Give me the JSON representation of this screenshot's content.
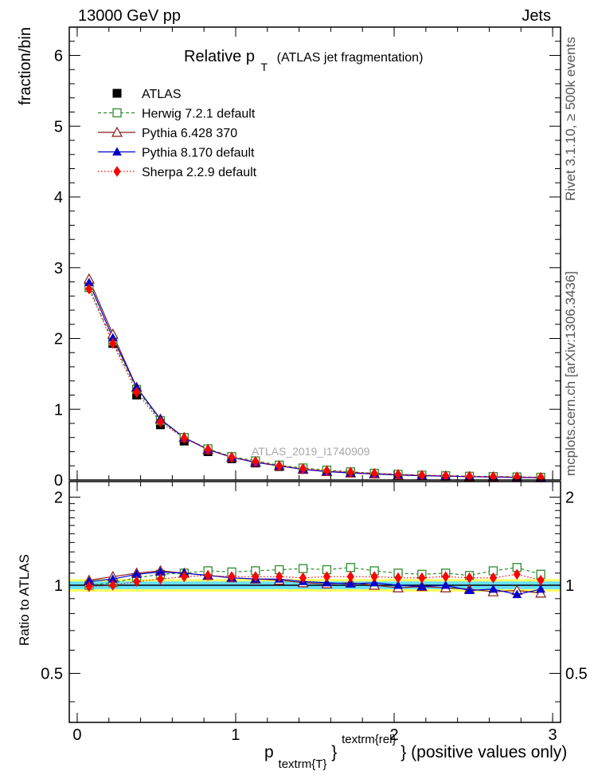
{
  "header": {
    "left": "13000 GeV pp",
    "right": "Jets"
  },
  "side_labels": {
    "rivet": "Rivet 3.1.10, ≥ 500k events",
    "mcplots": "mcplots.cern.ch [arXiv:1306.3436]"
  },
  "chart_data": {
    "type": "line",
    "title": "Relative p",
    "title_subscript": "T",
    "title_suffix": "(ATLAS jet fragmentation)",
    "analysis_label": "ATLAS_2019_I1740909",
    "xlabel": "p",
    "xlabel_sub": "textrm{T}",
    "xlabel_sup": "textrm{rel}",
    "xlabel_suffix": "} (positive values only)",
    "xlabel_brace": "}",
    "ylabel_main": "fraction/bin",
    "ylabel_ratio": "Ratio to ATLAS",
    "xlim": [
      -0.05,
      3.05
    ],
    "ylim_main": [
      0,
      6.4
    ],
    "ylim_ratio": [
      0.34,
      2.26
    ],
    "x_ticks": [
      0,
      1,
      2,
      3
    ],
    "x_tick_labels": [
      "0",
      "1",
      "2",
      "3"
    ],
    "y_ticks_main": [
      0,
      1,
      2,
      3,
      4,
      5,
      6
    ],
    "y_tick_labels_main": [
      "0",
      "1",
      "2",
      "3",
      "4",
      "5",
      "6"
    ],
    "y_ticks_ratio": [
      0.5,
      1,
      2
    ],
    "y_tick_labels_ratio": [
      "0.5",
      "1",
      "2"
    ],
    "x": [
      0.075,
      0.225,
      0.375,
      0.525,
      0.675,
      0.825,
      0.975,
      1.125,
      1.275,
      1.425,
      1.575,
      1.725,
      1.875,
      2.025,
      2.175,
      2.325,
      2.475,
      2.625,
      2.775,
      2.925
    ],
    "data": {
      "name": "ATLAS",
      "values": [
        2.72,
        1.93,
        1.2,
        0.78,
        0.55,
        0.4,
        0.3,
        0.24,
        0.19,
        0.15,
        0.12,
        0.1,
        0.085,
        0.072,
        0.062,
        0.055,
        0.049,
        0.044,
        0.039,
        0.035
      ]
    },
    "series": [
      {
        "name": "Herwig 7.2.1 default",
        "color": "#2e8b2e",
        "marker": "open-square",
        "dash": "dashed",
        "values": [
          2.72,
          1.96,
          1.28,
          0.84,
          0.6,
          0.44,
          0.33,
          0.27,
          0.21,
          0.17,
          0.14,
          0.115,
          0.095,
          0.08,
          0.068,
          0.06,
          0.053,
          0.048,
          0.043,
          0.038
        ],
        "ratio": [
          1.0,
          1.02,
          1.06,
          1.09,
          1.1,
          1.12,
          1.11,
          1.12,
          1.13,
          1.14,
          1.13,
          1.15,
          1.12,
          1.1,
          1.09,
          1.1,
          1.08,
          1.12,
          1.15,
          1.09
        ]
      },
      {
        "name": "Pythia 6.428 370",
        "color": "#8b1a1a",
        "marker": "open-triangle",
        "dash": "solid",
        "values": [
          2.84,
          2.06,
          1.31,
          0.86,
          0.6,
          0.43,
          0.32,
          0.25,
          0.2,
          0.15,
          0.12,
          0.1,
          0.085,
          0.07,
          0.061,
          0.054,
          0.047,
          0.042,
          0.037,
          0.033
        ],
        "ratio": [
          1.04,
          1.07,
          1.1,
          1.12,
          1.1,
          1.08,
          1.06,
          1.05,
          1.04,
          1.02,
          1.01,
          1.02,
          1.0,
          0.98,
          0.99,
          0.98,
          0.97,
          0.95,
          0.96,
          0.94
        ]
      },
      {
        "name": "Pythia 8.170 default",
        "color": "#0000cc",
        "marker": "filled-triangle",
        "dash": "solid",
        "values": [
          2.79,
          2.01,
          1.31,
          0.86,
          0.6,
          0.43,
          0.32,
          0.25,
          0.2,
          0.15,
          0.12,
          0.1,
          0.087,
          0.072,
          0.062,
          0.055,
          0.047,
          0.043,
          0.036,
          0.034
        ],
        "ratio": [
          1.03,
          1.05,
          1.09,
          1.11,
          1.1,
          1.08,
          1.06,
          1.05,
          1.05,
          1.03,
          1.02,
          1.01,
          1.02,
          1.0,
          0.99,
          1.0,
          0.96,
          0.97,
          0.93,
          0.97
        ]
      },
      {
        "name": "Sherpa 2.2.9 default",
        "color": "#ff0000",
        "marker": "filled-diamond",
        "dash": "dotted",
        "values": [
          2.7,
          1.93,
          1.24,
          0.82,
          0.59,
          0.43,
          0.32,
          0.26,
          0.2,
          0.16,
          0.13,
          0.11,
          0.093,
          0.078,
          0.066,
          0.059,
          0.052,
          0.047,
          0.043,
          0.037
        ],
        "ratio": [
          0.99,
          1.0,
          1.03,
          1.05,
          1.07,
          1.08,
          1.07,
          1.07,
          1.07,
          1.06,
          1.07,
          1.07,
          1.07,
          1.06,
          1.06,
          1.07,
          1.06,
          1.06,
          1.09,
          1.04
        ]
      }
    ],
    "ratio_bands": {
      "inner": [
        0.97,
        1.03
      ],
      "outer": [
        0.95,
        1.05
      ],
      "inner_color": "#66e0ff",
      "outer_color": "#ffff66"
    }
  }
}
